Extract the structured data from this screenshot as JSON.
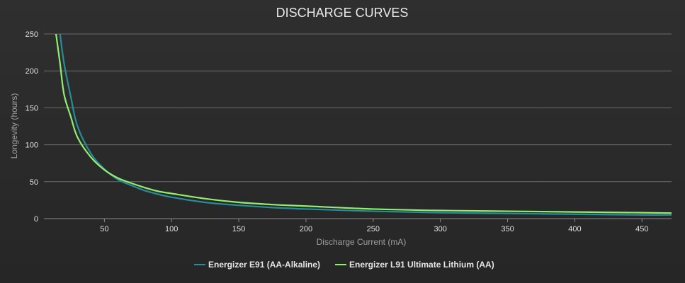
{
  "chart_data": {
    "type": "line",
    "title": "DISCHARGE CURVES",
    "xlabel": "Discharge Current (mA)",
    "ylabel": "Longevity (hours)",
    "xlim": [
      5,
      472
    ],
    "ylim": [
      0,
      250
    ],
    "x_ticks": [
      50,
      100,
      150,
      200,
      250,
      300,
      350,
      400,
      450
    ],
    "y_ticks": [
      0,
      50,
      100,
      150,
      200,
      250
    ],
    "grid": true,
    "legend_position": "bottom",
    "series": [
      {
        "name": "Energizer E91 (AA-Alkaline)",
        "color": "#2a8c96",
        "x": [
          17,
          20,
          25,
          30,
          40,
          50,
          60,
          70,
          80,
          90,
          100,
          125,
          150,
          175,
          200,
          250,
          300,
          350,
          400,
          450,
          472
        ],
        "y": [
          250,
          210,
          165,
          125,
          88,
          67,
          53,
          45,
          38,
          33,
          29,
          22,
          18,
          15,
          13,
          10,
          8,
          7,
          6,
          5,
          5
        ]
      },
      {
        "name": "Energizer L91 Ultimate Lithium (AA)",
        "color": "#90ee70",
        "x": [
          14,
          17,
          20,
          25,
          30,
          40,
          50,
          60,
          70,
          80,
          90,
          100,
          125,
          150,
          175,
          200,
          250,
          300,
          350,
          400,
          450,
          472
        ],
        "y": [
          250,
          210,
          168,
          138,
          110,
          83,
          66,
          55,
          48,
          42,
          37,
          34,
          27,
          22,
          19,
          17,
          13,
          11,
          10,
          9,
          8,
          7.5
        ]
      }
    ]
  }
}
